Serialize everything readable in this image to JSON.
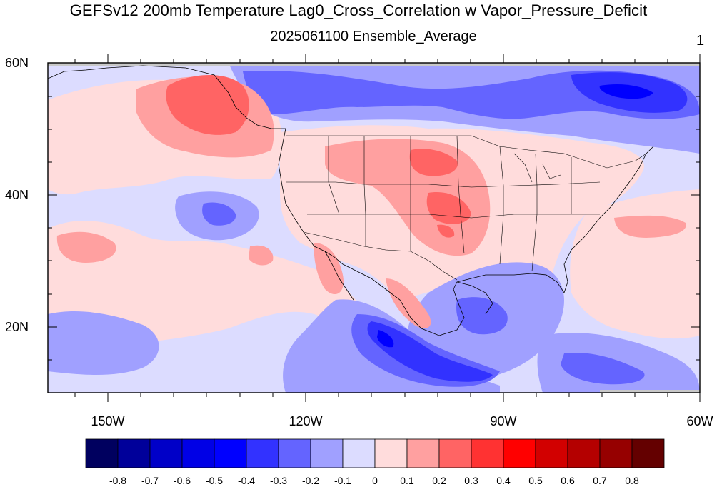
{
  "header": {
    "title": "GEFSv12 200mb Temperature Lag0_Cross_Correlation w Vapor_Pressure_Deficit",
    "subtitle": "2025061100 Ensemble_Average",
    "panel_number": "1"
  },
  "axes": {
    "lat_labels": [
      "60N",
      "40N",
      "20N"
    ],
    "lon_labels": [
      "150W",
      "120W",
      "90W",
      "60W"
    ]
  },
  "colorbar": {
    "labels": [
      "-0.8",
      "-0.7",
      "-0.6",
      "-0.5",
      "-0.4",
      "-0.3",
      "-0.2",
      "-0.1",
      "0",
      "0.1",
      "0.2",
      "0.3",
      "0.4",
      "0.5",
      "0.6",
      "0.7",
      "0.8"
    ],
    "colors": [
      "#00005f",
      "#00009a",
      "#0000c8",
      "#0000e6",
      "#0000ff",
      "#3232ff",
      "#6464ff",
      "#a0a0ff",
      "#dcdcff",
      "#ffdcdc",
      "#ffa0a0",
      "#ff6464",
      "#ff3232",
      "#ff0000",
      "#d20000",
      "#b40000",
      "#960000",
      "#640000"
    ]
  },
  "map": {
    "ocean_base_color": "#dcdcff",
    "land_base_color": "#ffdcdc"
  }
}
